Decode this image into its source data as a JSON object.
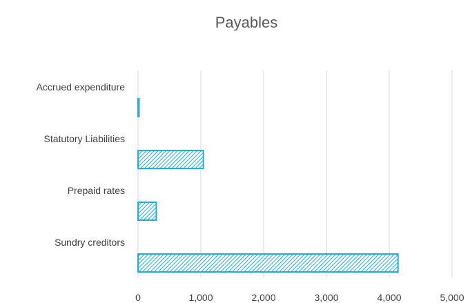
{
  "chart_data": {
    "type": "bar",
    "orientation": "horizontal",
    "title": "Payables",
    "categories": [
      "Accrued expenditure",
      "Statutory Liabilities",
      "Prepaid rates",
      "Sundry creditors"
    ],
    "values": [
      15,
      1040,
      290,
      4140
    ],
    "xlim": [
      0,
      5000
    ],
    "ticks": [
      "0",
      "1,000",
      "2,000",
      "3,000",
      "4,000",
      "5,000"
    ],
    "grid": "vertical",
    "legend": "none",
    "bar_color": "#1ab0e6",
    "fill_pattern": "diagonal-hatch",
    "gridline_color": "#d9d9d9"
  }
}
